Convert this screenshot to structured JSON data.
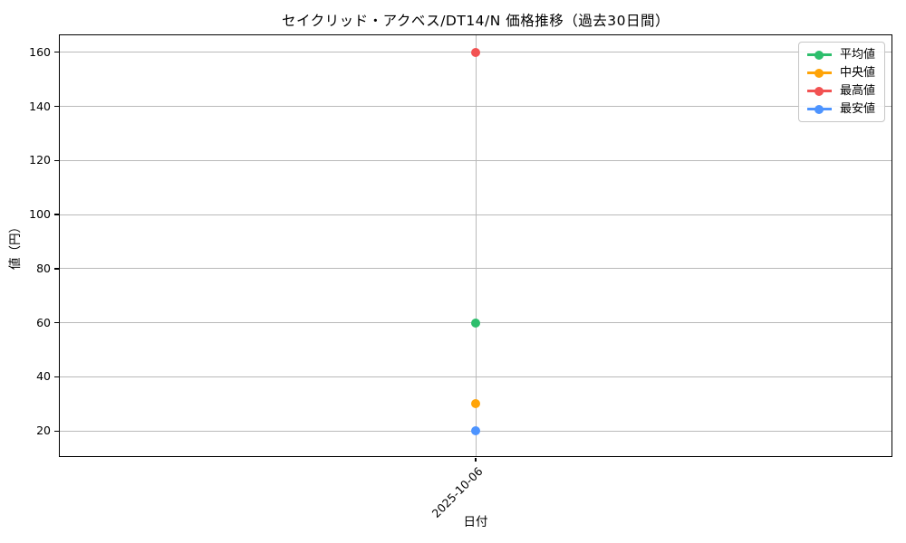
{
  "figure": {
    "title": "セイクリッド・アクベス/DT14/N 価格推移（過去30日間）",
    "background": "#ffffff",
    "grid_color": "#b9b9b9",
    "frame_color": "#000000"
  },
  "chart_data": {
    "type": "line",
    "title": "セイクリッド・アクベス/DT14/N 価格推移（過去30日間）",
    "xlabel": "日付",
    "ylabel": "値（円）",
    "x": [
      "2025-10-06"
    ],
    "series": [
      {
        "name": "平均値",
        "color": "#2dbe6c",
        "values": [
          60
        ]
      },
      {
        "name": "中央値",
        "color": "#ffa408",
        "values": [
          30
        ]
      },
      {
        "name": "最高値",
        "color": "#f25252",
        "values": [
          160
        ]
      },
      {
        "name": "最安値",
        "color": "#4d94ff",
        "values": [
          20
        ]
      }
    ],
    "yticks": [
      20,
      40,
      60,
      80,
      100,
      120,
      140,
      160
    ],
    "ylim": [
      10.7,
      166.3
    ],
    "grid": true,
    "legend_position": "upper right",
    "marker": "circle"
  }
}
